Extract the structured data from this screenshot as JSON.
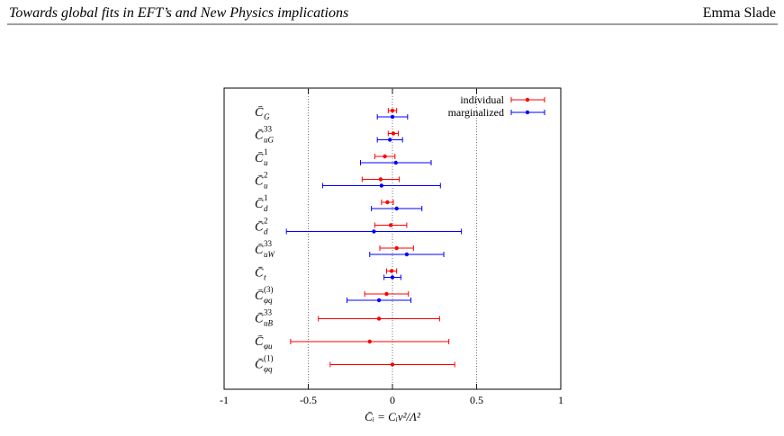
{
  "header": {
    "title": "Towards global fits in EFT’s and New Physics implications",
    "author": "Emma Slade"
  },
  "chart_data": {
    "type": "errorbar",
    "orientation": "horizontal",
    "categories": [
      {
        "symbol": "C̄",
        "sub": "G"
      },
      {
        "symbol": "C̄",
        "sub": "uG",
        "sup": "33"
      },
      {
        "symbol": "C̄",
        "sub": "u",
        "sup": "1"
      },
      {
        "symbol": "C̄",
        "sub": "u",
        "sup": "2"
      },
      {
        "symbol": "C̄",
        "sub": "d",
        "sup": "1"
      },
      {
        "symbol": "C̄",
        "sub": "d",
        "sup": "2"
      },
      {
        "symbol": "C̄",
        "sub": "uW",
        "sup": "33"
      },
      {
        "symbol": "C̄",
        "sub": "t"
      },
      {
        "symbol": "C̄",
        "sub": "φq",
        "sup": "(3)"
      },
      {
        "symbol": "C̄",
        "sub": "uB",
        "sup": "33"
      },
      {
        "symbol": "C̄",
        "sub": "φu"
      },
      {
        "symbol": "C̄",
        "sub": "φq",
        "sup": "(1)"
      }
    ],
    "series": [
      {
        "name": "individual",
        "color": "#ff0000",
        "values": [
          0.0,
          0.005,
          -0.045,
          -0.07,
          -0.03,
          -0.01,
          0.025,
          -0.005,
          -0.035,
          -0.08,
          -0.135,
          0.0
        ],
        "errors": [
          0.025,
          0.03,
          0.06,
          0.11,
          0.035,
          0.095,
          0.1,
          0.03,
          0.13,
          0.36,
          0.47,
          0.37
        ]
      },
      {
        "name": "marginalized",
        "color": "#0000ff",
        "values": [
          0.0,
          -0.015,
          0.02,
          -0.065,
          0.025,
          -0.11,
          0.085,
          0.0,
          -0.08,
          null,
          null,
          null
        ],
        "errors": [
          0.09,
          0.075,
          0.21,
          0.35,
          0.15,
          0.52,
          0.22,
          0.05,
          0.19,
          null,
          null,
          null
        ]
      }
    ],
    "xlim": [
      -1,
      1
    ],
    "xticks": [
      -1,
      -0.5,
      0,
      0.5,
      1
    ],
    "grid": true,
    "legend": "upper right",
    "xlabel": "C̄ᵢ = Cᵢv²/Λ²"
  }
}
